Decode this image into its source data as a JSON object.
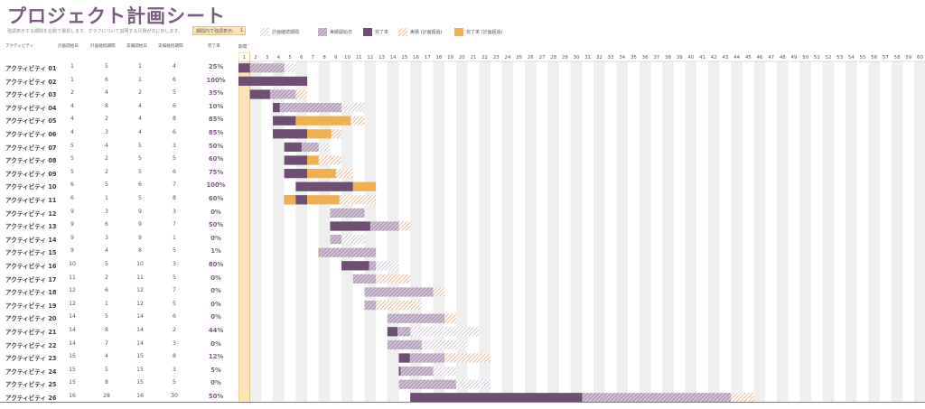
{
  "title": "プロジェクト計画シート",
  "subtitle": "強調表示する期間を右側で選択します。グラフについて説明する凡例が次に示します。",
  "highlight": {
    "label": "期間内で強調表示:",
    "value": "1"
  },
  "legend": [
    {
      "label": "計画継続期間",
      "type": "plan"
    },
    {
      "label": "実績開始日",
      "type": "actual"
    },
    {
      "label": "完了率",
      "type": "complete"
    },
    {
      "label": "実績 (計画超過)",
      "type": "actual-over"
    },
    {
      "label": "完了率 (計画超過)",
      "type": "complete-over"
    }
  ],
  "columns": {
    "activity": "アクティビティ",
    "plan_start": "計画開始日",
    "plan_duration": "計画継続期間",
    "actual_start": "実績開始日",
    "actual_duration": "実績継続期間",
    "percent": "完了率",
    "period": "期間"
  },
  "periods": [
    "1",
    "2",
    "3",
    "4",
    "5",
    "6",
    "7",
    "8",
    "9",
    "10",
    "11",
    "12",
    "13",
    "14",
    "15",
    "16",
    "17",
    "18",
    "19",
    "20",
    "21",
    "22",
    "23",
    "24",
    "25",
    "26",
    "27",
    "28",
    "29",
    "30",
    "31",
    "32",
    "33",
    "34",
    "35",
    "36",
    "37",
    "38",
    "39",
    "40",
    "41",
    "42",
    "43",
    "44",
    "45",
    "46",
    "47",
    "48",
    "49",
    "50",
    "51",
    "52",
    "53",
    "54",
    "55",
    "56",
    "57",
    "58",
    "59",
    "60"
  ],
  "colors": {
    "plan": "#d7cedb",
    "actual": "#a98fae",
    "complete": "#6e4f73",
    "over": "#f0b050",
    "over_hatch": "#e7b38d",
    "highlight": "#fde4b8",
    "stripe": "#efefef",
    "title": "#7b5d80"
  },
  "activities": [
    {
      "name": "アクティビティ 01",
      "plan_start": 1,
      "plan_dur": 5,
      "act_start": 1,
      "act_dur": 4,
      "pct": "25%",
      "pct_value": 0.25
    },
    {
      "name": "アクティビティ 02",
      "plan_start": 1,
      "plan_dur": 6,
      "act_start": 1,
      "act_dur": 6,
      "pct": "100%",
      "pct_value": 1.0
    },
    {
      "name": "アクティビティ 03",
      "plan_start": 2,
      "plan_dur": 4,
      "act_start": 2,
      "act_dur": 5,
      "pct": "35%",
      "pct_value": 0.35
    },
    {
      "name": "アクティビティ 04",
      "plan_start": 4,
      "plan_dur": 8,
      "act_start": 4,
      "act_dur": 6,
      "pct": "10%",
      "pct_value": 0.1
    },
    {
      "name": "アクティビティ 05",
      "plan_start": 4,
      "plan_dur": 2,
      "act_start": 4,
      "act_dur": 8,
      "pct": "85%",
      "pct_value": 0.85
    },
    {
      "name": "アクティビティ 06",
      "plan_start": 4,
      "plan_dur": 3,
      "act_start": 4,
      "act_dur": 6,
      "pct": "85%",
      "pct_value": 0.85
    },
    {
      "name": "アクティビティ 07",
      "plan_start": 5,
      "plan_dur": 4,
      "act_start": 5,
      "act_dur": 3,
      "pct": "50%",
      "pct_value": 0.5
    },
    {
      "name": "アクティビティ 08",
      "plan_start": 5,
      "plan_dur": 2,
      "act_start": 5,
      "act_dur": 5,
      "pct": "60%",
      "pct_value": 0.6
    },
    {
      "name": "アクティビティ 09",
      "plan_start": 5,
      "plan_dur": 2,
      "act_start": 5,
      "act_dur": 6,
      "pct": "75%",
      "pct_value": 0.75
    },
    {
      "name": "アクティビティ 10",
      "plan_start": 6,
      "plan_dur": 5,
      "act_start": 6,
      "act_dur": 7,
      "pct": "100%",
      "pct_value": 1.0
    },
    {
      "name": "アクティビティ 11",
      "plan_start": 6,
      "plan_dur": 1,
      "act_start": 5,
      "act_dur": 8,
      "pct": "60%",
      "pct_value": 0.6
    },
    {
      "name": "アクティビティ 12",
      "plan_start": 9,
      "plan_dur": 3,
      "act_start": 9,
      "act_dur": 3,
      "pct": "0%",
      "pct_value": 0.0
    },
    {
      "name": "アクティビティ 13",
      "plan_start": 9,
      "plan_dur": 6,
      "act_start": 9,
      "act_dur": 7,
      "pct": "50%",
      "pct_value": 0.5
    },
    {
      "name": "アクティビティ 14",
      "plan_start": 9,
      "plan_dur": 3,
      "act_start": 9,
      "act_dur": 1,
      "pct": "0%",
      "pct_value": 0.0
    },
    {
      "name": "アクティビティ 15",
      "plan_start": 9,
      "plan_dur": 4,
      "act_start": 8,
      "act_dur": 5,
      "pct": "1%",
      "pct_value": 0.01
    },
    {
      "name": "アクティビティ 16",
      "plan_start": 10,
      "plan_dur": 5,
      "act_start": 10,
      "act_dur": 3,
      "pct": "80%",
      "pct_value": 0.8
    },
    {
      "name": "アクティビティ 17",
      "plan_start": 11,
      "plan_dur": 2,
      "act_start": 11,
      "act_dur": 5,
      "pct": "0%",
      "pct_value": 0.0
    },
    {
      "name": "アクティビティ 18",
      "plan_start": 12,
      "plan_dur": 6,
      "act_start": 12,
      "act_dur": 7,
      "pct": "0%",
      "pct_value": 0.0
    },
    {
      "name": "アクティビティ 19",
      "plan_start": 12,
      "plan_dur": 1,
      "act_start": 12,
      "act_dur": 5,
      "pct": "0%",
      "pct_value": 0.0
    },
    {
      "name": "アクティビティ 20",
      "plan_start": 14,
      "plan_dur": 5,
      "act_start": 14,
      "act_dur": 6,
      "pct": "0%",
      "pct_value": 0.0
    },
    {
      "name": "アクティビティ 21",
      "plan_start": 14,
      "plan_dur": 8,
      "act_start": 14,
      "act_dur": 2,
      "pct": "44%",
      "pct_value": 0.44
    },
    {
      "name": "アクティビティ 22",
      "plan_start": 14,
      "plan_dur": 7,
      "act_start": 14,
      "act_dur": 3,
      "pct": "0%",
      "pct_value": 0.0
    },
    {
      "name": "アクティビティ 23",
      "plan_start": 15,
      "plan_dur": 4,
      "act_start": 15,
      "act_dur": 8,
      "pct": "12%",
      "pct_value": 0.12
    },
    {
      "name": "アクティビティ 24",
      "plan_start": 15,
      "plan_dur": 5,
      "act_start": 15,
      "act_dur": 3,
      "pct": "5%",
      "pct_value": 0.05
    },
    {
      "name": "アクティビティ 25",
      "plan_start": 15,
      "plan_dur": 8,
      "act_start": 15,
      "act_dur": 5,
      "pct": "0%",
      "pct_value": 0.0
    },
    {
      "name": "アクティビティ 26",
      "plan_start": 16,
      "plan_dur": 28,
      "act_start": 16,
      "act_dur": 30,
      "pct": "50%",
      "pct_value": 0.5
    }
  ]
}
